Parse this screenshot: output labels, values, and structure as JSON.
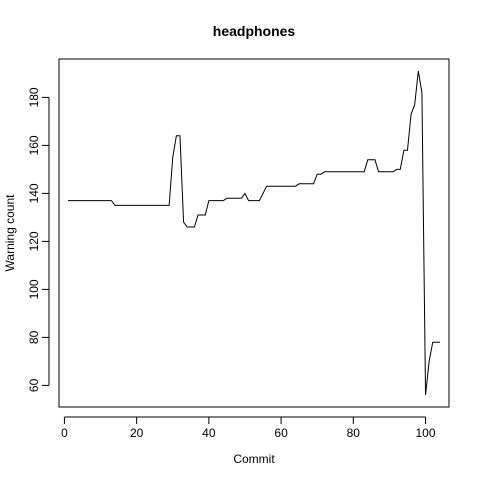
{
  "chart_data": {
    "type": "line",
    "title": "headphones",
    "xlabel": "Commit",
    "ylabel": "Warning count",
    "xlim": [
      -1.5,
      106.5
    ],
    "ylim": [
      51,
      196
    ],
    "xticks": [
      0,
      20,
      40,
      60,
      80,
      100
    ],
    "yticks": [
      60,
      80,
      100,
      120,
      140,
      160,
      180
    ],
    "grid": false,
    "legend": "none",
    "series": [
      {
        "x": [
          1,
          2,
          5,
          10,
          13,
          14,
          15,
          20,
          25,
          29,
          30,
          31,
          32,
          33,
          34,
          35,
          36,
          37,
          38,
          39,
          40,
          41,
          42,
          43,
          44,
          45,
          46,
          47,
          48,
          49,
          50,
          51,
          52,
          53,
          54,
          55,
          56,
          57,
          58,
          60,
          62,
          64,
          65,
          66,
          68,
          69,
          70,
          71,
          72,
          75,
          78,
          80,
          82,
          83,
          84,
          85,
          86,
          87,
          88,
          90,
          91,
          92,
          93,
          94,
          95,
          96,
          97,
          98,
          99,
          100,
          101,
          102,
          103,
          104
        ],
        "values": [
          137,
          137,
          137,
          137,
          137,
          135,
          135,
          135,
          135,
          135,
          155,
          164,
          164,
          128,
          126,
          126,
          126,
          131,
          131,
          131,
          137,
          137,
          137,
          137,
          137,
          138,
          138,
          138,
          138,
          138,
          140,
          137,
          137,
          137,
          137,
          140,
          143,
          143,
          143,
          143,
          143,
          143,
          144,
          144,
          144,
          144,
          148,
          148,
          149,
          149,
          149,
          149,
          149,
          149,
          154,
          154,
          154,
          149,
          149,
          149,
          149,
          150,
          150,
          158,
          158,
          173,
          177,
          191,
          182,
          56,
          70,
          78,
          78,
          78
        ]
      }
    ]
  }
}
